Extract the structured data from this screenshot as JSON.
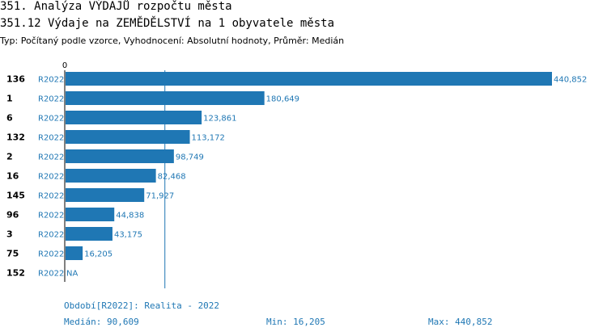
{
  "header": {
    "title": "351. Analýza VÝDAJŮ rozpočtu města",
    "subtitle": "351.12 Výdaje na ZEMĚDĚLSTVÍ na 1 obyvatele města",
    "type_line": "Typ: Počítaný podle vzorce, Vyhodnocení: Absolutní hodnoty, Průměr: Medián"
  },
  "chart_data": {
    "type": "bar",
    "orientation": "horizontal",
    "xlim": [
      0,
      440852
    ],
    "x_tick_labels": [
      "0"
    ],
    "reference_line": {
      "label": "Medián",
      "value": 90609
    },
    "bar_color": "#1f77b4",
    "categories": [
      "136",
      "1",
      "6",
      "132",
      "2",
      "16",
      "145",
      "96",
      "3",
      "75",
      "152"
    ],
    "period": "R2022",
    "values": [
      440852,
      180649,
      123861,
      113172,
      98749,
      82468,
      71927,
      44838,
      43175,
      16205,
      null
    ],
    "value_labels": [
      "440,852",
      "180,649",
      "123,861",
      "113,172",
      "98,749",
      "82,468",
      "71,927",
      "44,838",
      "43,175",
      "16,205",
      "NA"
    ]
  },
  "footer": {
    "period": "Období[R2022]: Realita - 2022",
    "median": "Medián: 90,609",
    "min": "Min: 16,205",
    "max": "Max: 440,852"
  }
}
